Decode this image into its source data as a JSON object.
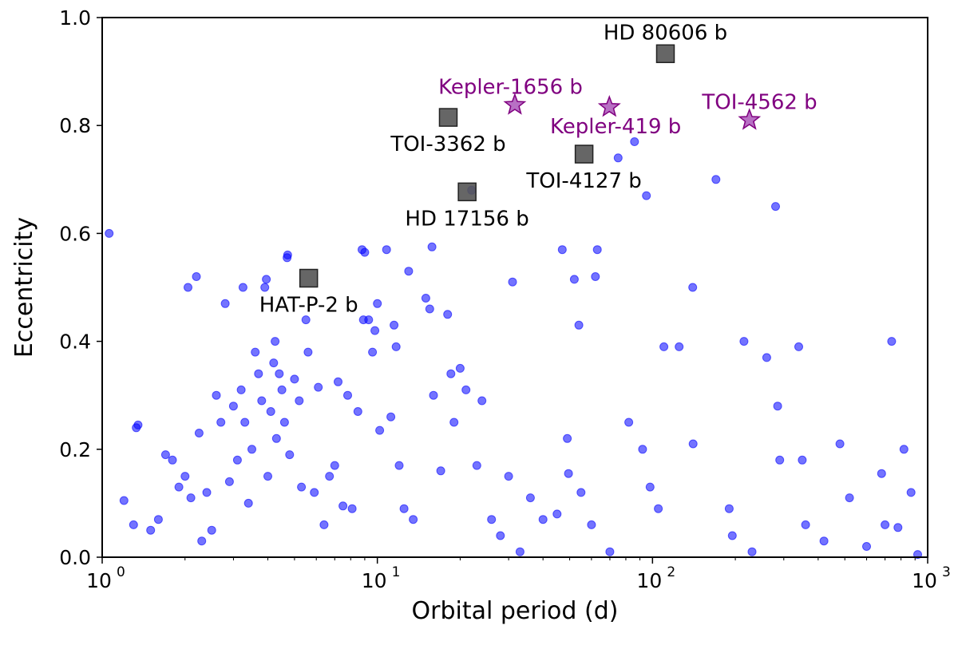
{
  "chart_data": {
    "type": "scatter",
    "title": "",
    "xlabel": "Orbital period  (d)",
    "ylabel": "Eccentricity",
    "xscale": "log",
    "xlim": [
      1,
      1000
    ],
    "ylim": [
      0.0,
      1.0
    ],
    "xticks": [
      {
        "value": 1,
        "base": "10",
        "exp": "0"
      },
      {
        "value": 10,
        "base": "10",
        "exp": "1"
      },
      {
        "value": 100,
        "base": "10",
        "exp": "2"
      },
      {
        "value": 1000,
        "base": "10",
        "exp": "3"
      }
    ],
    "yticks": [
      {
        "value": 0.0,
        "label": "0.0"
      },
      {
        "value": 0.2,
        "label": "0.2"
      },
      {
        "value": 0.4,
        "label": "0.4"
      },
      {
        "value": 0.6,
        "label": "0.6"
      },
      {
        "value": 0.8,
        "label": "0.8"
      },
      {
        "value": 1.0,
        "label": "1.0"
      }
    ],
    "grid": false,
    "colors": {
      "population": "#0000ff",
      "highlight": "#555555",
      "star": "#a040b0",
      "star_label": "#800080"
    },
    "series": [
      {
        "marker": "circle",
        "points": [
          [
            1.06,
            0.6
          ],
          [
            1.2,
            0.105
          ],
          [
            1.3,
            0.06
          ],
          [
            1.33,
            0.24
          ],
          [
            1.35,
            0.245
          ],
          [
            1.5,
            0.05
          ],
          [
            1.6,
            0.07
          ],
          [
            1.7,
            0.19
          ],
          [
            1.8,
            0.18
          ],
          [
            1.9,
            0.13
          ],
          [
            2.0,
            0.15
          ],
          [
            2.05,
            0.5
          ],
          [
            2.1,
            0.11
          ],
          [
            2.2,
            0.52
          ],
          [
            2.25,
            0.23
          ],
          [
            2.3,
            0.03
          ],
          [
            2.4,
            0.12
          ],
          [
            2.5,
            0.05
          ],
          [
            2.6,
            0.3
          ],
          [
            2.7,
            0.25
          ],
          [
            2.8,
            0.47
          ],
          [
            2.9,
            0.14
          ],
          [
            3.0,
            0.28
          ],
          [
            3.1,
            0.18
          ],
          [
            3.2,
            0.31
          ],
          [
            3.25,
            0.5
          ],
          [
            3.3,
            0.25
          ],
          [
            3.4,
            0.1
          ],
          [
            3.5,
            0.2
          ],
          [
            3.6,
            0.38
          ],
          [
            3.7,
            0.34
          ],
          [
            3.8,
            0.29
          ],
          [
            3.9,
            0.5
          ],
          [
            3.95,
            0.515
          ],
          [
            4.0,
            0.15
          ],
          [
            4.1,
            0.27
          ],
          [
            4.2,
            0.36
          ],
          [
            4.25,
            0.4
          ],
          [
            4.3,
            0.22
          ],
          [
            4.4,
            0.34
          ],
          [
            4.5,
            0.31
          ],
          [
            4.6,
            0.25
          ],
          [
            4.7,
            0.555
          ],
          [
            4.72,
            0.56
          ],
          [
            4.8,
            0.19
          ],
          [
            5.0,
            0.33
          ],
          [
            5.2,
            0.29
          ],
          [
            5.3,
            0.13
          ],
          [
            5.5,
            0.44
          ],
          [
            5.6,
            0.38
          ],
          [
            5.9,
            0.12
          ],
          [
            6.1,
            0.315
          ],
          [
            6.4,
            0.06
          ],
          [
            6.7,
            0.15
          ],
          [
            7.0,
            0.17
          ],
          [
            7.2,
            0.325
          ],
          [
            7.5,
            0.095
          ],
          [
            7.8,
            0.3
          ],
          [
            8.1,
            0.09
          ],
          [
            8.5,
            0.27
          ],
          [
            8.8,
            0.57
          ],
          [
            8.9,
            0.44
          ],
          [
            9.0,
            0.565
          ],
          [
            9.3,
            0.44
          ],
          [
            9.6,
            0.38
          ],
          [
            9.8,
            0.42
          ],
          [
            10.0,
            0.47
          ],
          [
            10.2,
            0.235
          ],
          [
            10.8,
            0.57
          ],
          [
            11.2,
            0.26
          ],
          [
            11.5,
            0.43
          ],
          [
            11.7,
            0.39
          ],
          [
            12.0,
            0.17
          ],
          [
            12.5,
            0.09
          ],
          [
            13.0,
            0.53
          ],
          [
            13.5,
            0.07
          ],
          [
            15.0,
            0.48
          ],
          [
            15.5,
            0.46
          ],
          [
            15.8,
            0.575
          ],
          [
            16.0,
            0.3
          ],
          [
            17.0,
            0.16
          ],
          [
            18.0,
            0.45
          ],
          [
            18.5,
            0.34
          ],
          [
            19.0,
            0.25
          ],
          [
            20.0,
            0.35
          ],
          [
            21.0,
            0.31
          ],
          [
            22.0,
            0.68
          ],
          [
            23.0,
            0.17
          ],
          [
            24.0,
            0.29
          ],
          [
            26.0,
            0.07
          ],
          [
            28.0,
            0.04
          ],
          [
            30.0,
            0.15
          ],
          [
            31.0,
            0.51
          ],
          [
            33.0,
            0.01
          ],
          [
            36.0,
            0.11
          ],
          [
            40.0,
            0.07
          ],
          [
            45.0,
            0.08
          ],
          [
            47.0,
            0.57
          ],
          [
            49.0,
            0.22
          ],
          [
            49.5,
            0.155
          ],
          [
            52.0,
            0.515
          ],
          [
            54.0,
            0.43
          ],
          [
            55.0,
            0.12
          ],
          [
            60.0,
            0.06
          ],
          [
            62.0,
            0.52
          ],
          [
            63.0,
            0.57
          ],
          [
            70.0,
            0.01
          ],
          [
            75.0,
            0.74
          ],
          [
            82.0,
            0.25
          ],
          [
            86.0,
            0.77
          ],
          [
            92.0,
            0.2
          ],
          [
            95.0,
            0.67
          ],
          [
            98.0,
            0.13
          ],
          [
            105.0,
            0.09
          ],
          [
            110.0,
            0.39
          ],
          [
            125.0,
            0.39
          ],
          [
            140.0,
            0.5
          ],
          [
            140.5,
            0.21
          ],
          [
            170.0,
            0.7
          ],
          [
            190.0,
            0.09
          ],
          [
            195.0,
            0.04
          ],
          [
            215.0,
            0.4
          ],
          [
            230.0,
            0.01
          ],
          [
            260.0,
            0.37
          ],
          [
            280.0,
            0.65
          ],
          [
            285.0,
            0.28
          ],
          [
            290.0,
            0.18
          ],
          [
            340.0,
            0.39
          ],
          [
            350.0,
            0.18
          ],
          [
            360.0,
            0.06
          ],
          [
            420.0,
            0.03
          ],
          [
            480.0,
            0.21
          ],
          [
            520.0,
            0.11
          ],
          [
            600.0,
            0.02
          ],
          [
            680.0,
            0.155
          ],
          [
            700.0,
            0.06
          ],
          [
            740.0,
            0.4
          ],
          [
            780.0,
            0.055
          ],
          [
            820.0,
            0.2
          ],
          [
            870.0,
            0.12
          ],
          [
            920.0,
            0.005
          ]
        ]
      },
      {
        "marker": "square",
        "points": [
          {
            "x": 5.63,
            "y": 0.517,
            "label": "HAT-P-2 b",
            "pos": "below"
          },
          {
            "x": 21.2,
            "y": 0.677,
            "label": "HD 17156 b",
            "pos": "below"
          },
          {
            "x": 18.1,
            "y": 0.815,
            "label": "TOI-3362 b",
            "pos": "below"
          },
          {
            "x": 56.4,
            "y": 0.747,
            "label": "TOI-4127 b",
            "pos": "below"
          },
          {
            "x": 111.4,
            "y": 0.933,
            "label": "HD 80606 b",
            "pos": "above"
          }
        ]
      },
      {
        "marker": "star",
        "points": [
          {
            "x": 31.6,
            "y": 0.838,
            "label": "Kepler-1656 b",
            "pos": "upper-left"
          },
          {
            "x": 69.7,
            "y": 0.834,
            "label": "Kepler-419 b",
            "pos": "below-left"
          },
          {
            "x": 225.0,
            "y": 0.81,
            "label": "TOI-4562 b",
            "pos": "upper-left"
          }
        ]
      }
    ]
  }
}
